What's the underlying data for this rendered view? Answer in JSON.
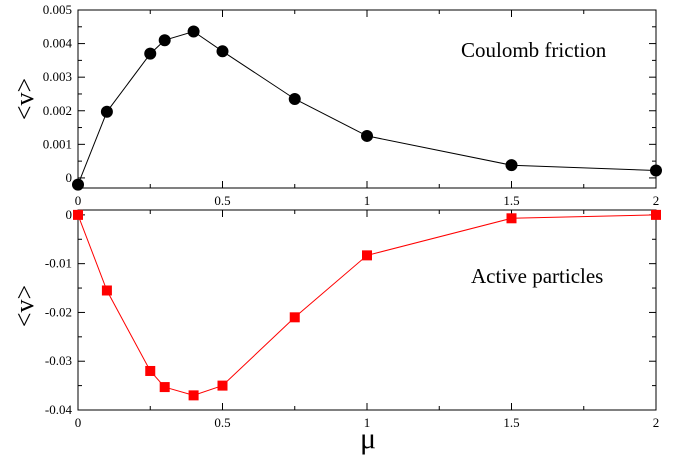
{
  "chart_data": [
    {
      "type": "line",
      "panel": "top",
      "x": [
        0,
        0.1,
        0.25,
        0.3,
        0.4,
        0.5,
        0.75,
        1,
        1.5,
        2
      ],
      "series": [
        {
          "name": "Coulomb friction",
          "values": [
            -0.0002,
            0.00197,
            0.0037,
            0.0041,
            0.00436,
            0.00377,
            0.00235,
            0.00125,
            0.00038,
            0.00022
          ]
        }
      ],
      "ylabel": "<v>",
      "xlim": [
        0,
        2
      ],
      "ylim": [
        -0.0003,
        0.005
      ],
      "xticks": [
        0,
        0.5,
        1,
        1.5,
        2
      ],
      "xtick_labels": [
        "0",
        "0.5",
        "1",
        "1.5",
        "2"
      ],
      "yticks": [
        0,
        0.001,
        0.002,
        0.003,
        0.004,
        0.005
      ],
      "ytick_labels": [
        "0",
        "0.001",
        "0.002",
        "0.003",
        "0.004",
        "0.005"
      ],
      "annotation": "Coulomb friction",
      "color": "#000000",
      "marker": "circle",
      "grid": false
    },
    {
      "type": "line",
      "panel": "bottom",
      "x": [
        0,
        0.1,
        0.25,
        0.3,
        0.4,
        0.5,
        0.75,
        1,
        1.5,
        2
      ],
      "series": [
        {
          "name": "Active particles",
          "values": [
            0,
            -0.0155,
            -0.032,
            -0.0353,
            -0.037,
            -0.035,
            -0.021,
            -0.0083,
            -0.0007,
            0
          ]
        }
      ],
      "xlabel": "μ",
      "ylabel": "<v>",
      "xlim": [
        0,
        2
      ],
      "ylim": [
        -0.04,
        0.001
      ],
      "xticks": [
        0,
        0.5,
        1,
        1.5,
        2
      ],
      "xtick_labels": [
        "0",
        "0.5",
        "1",
        "1.5",
        "2"
      ],
      "yticks": [
        0,
        -0.01,
        -0.02,
        -0.03,
        -0.04
      ],
      "ytick_labels": [
        "0",
        "-0.01",
        "-0.02",
        "-0.03",
        "-0.04"
      ],
      "annotation": "Active particles",
      "color": "#ff0000",
      "marker": "square",
      "grid": false
    }
  ]
}
